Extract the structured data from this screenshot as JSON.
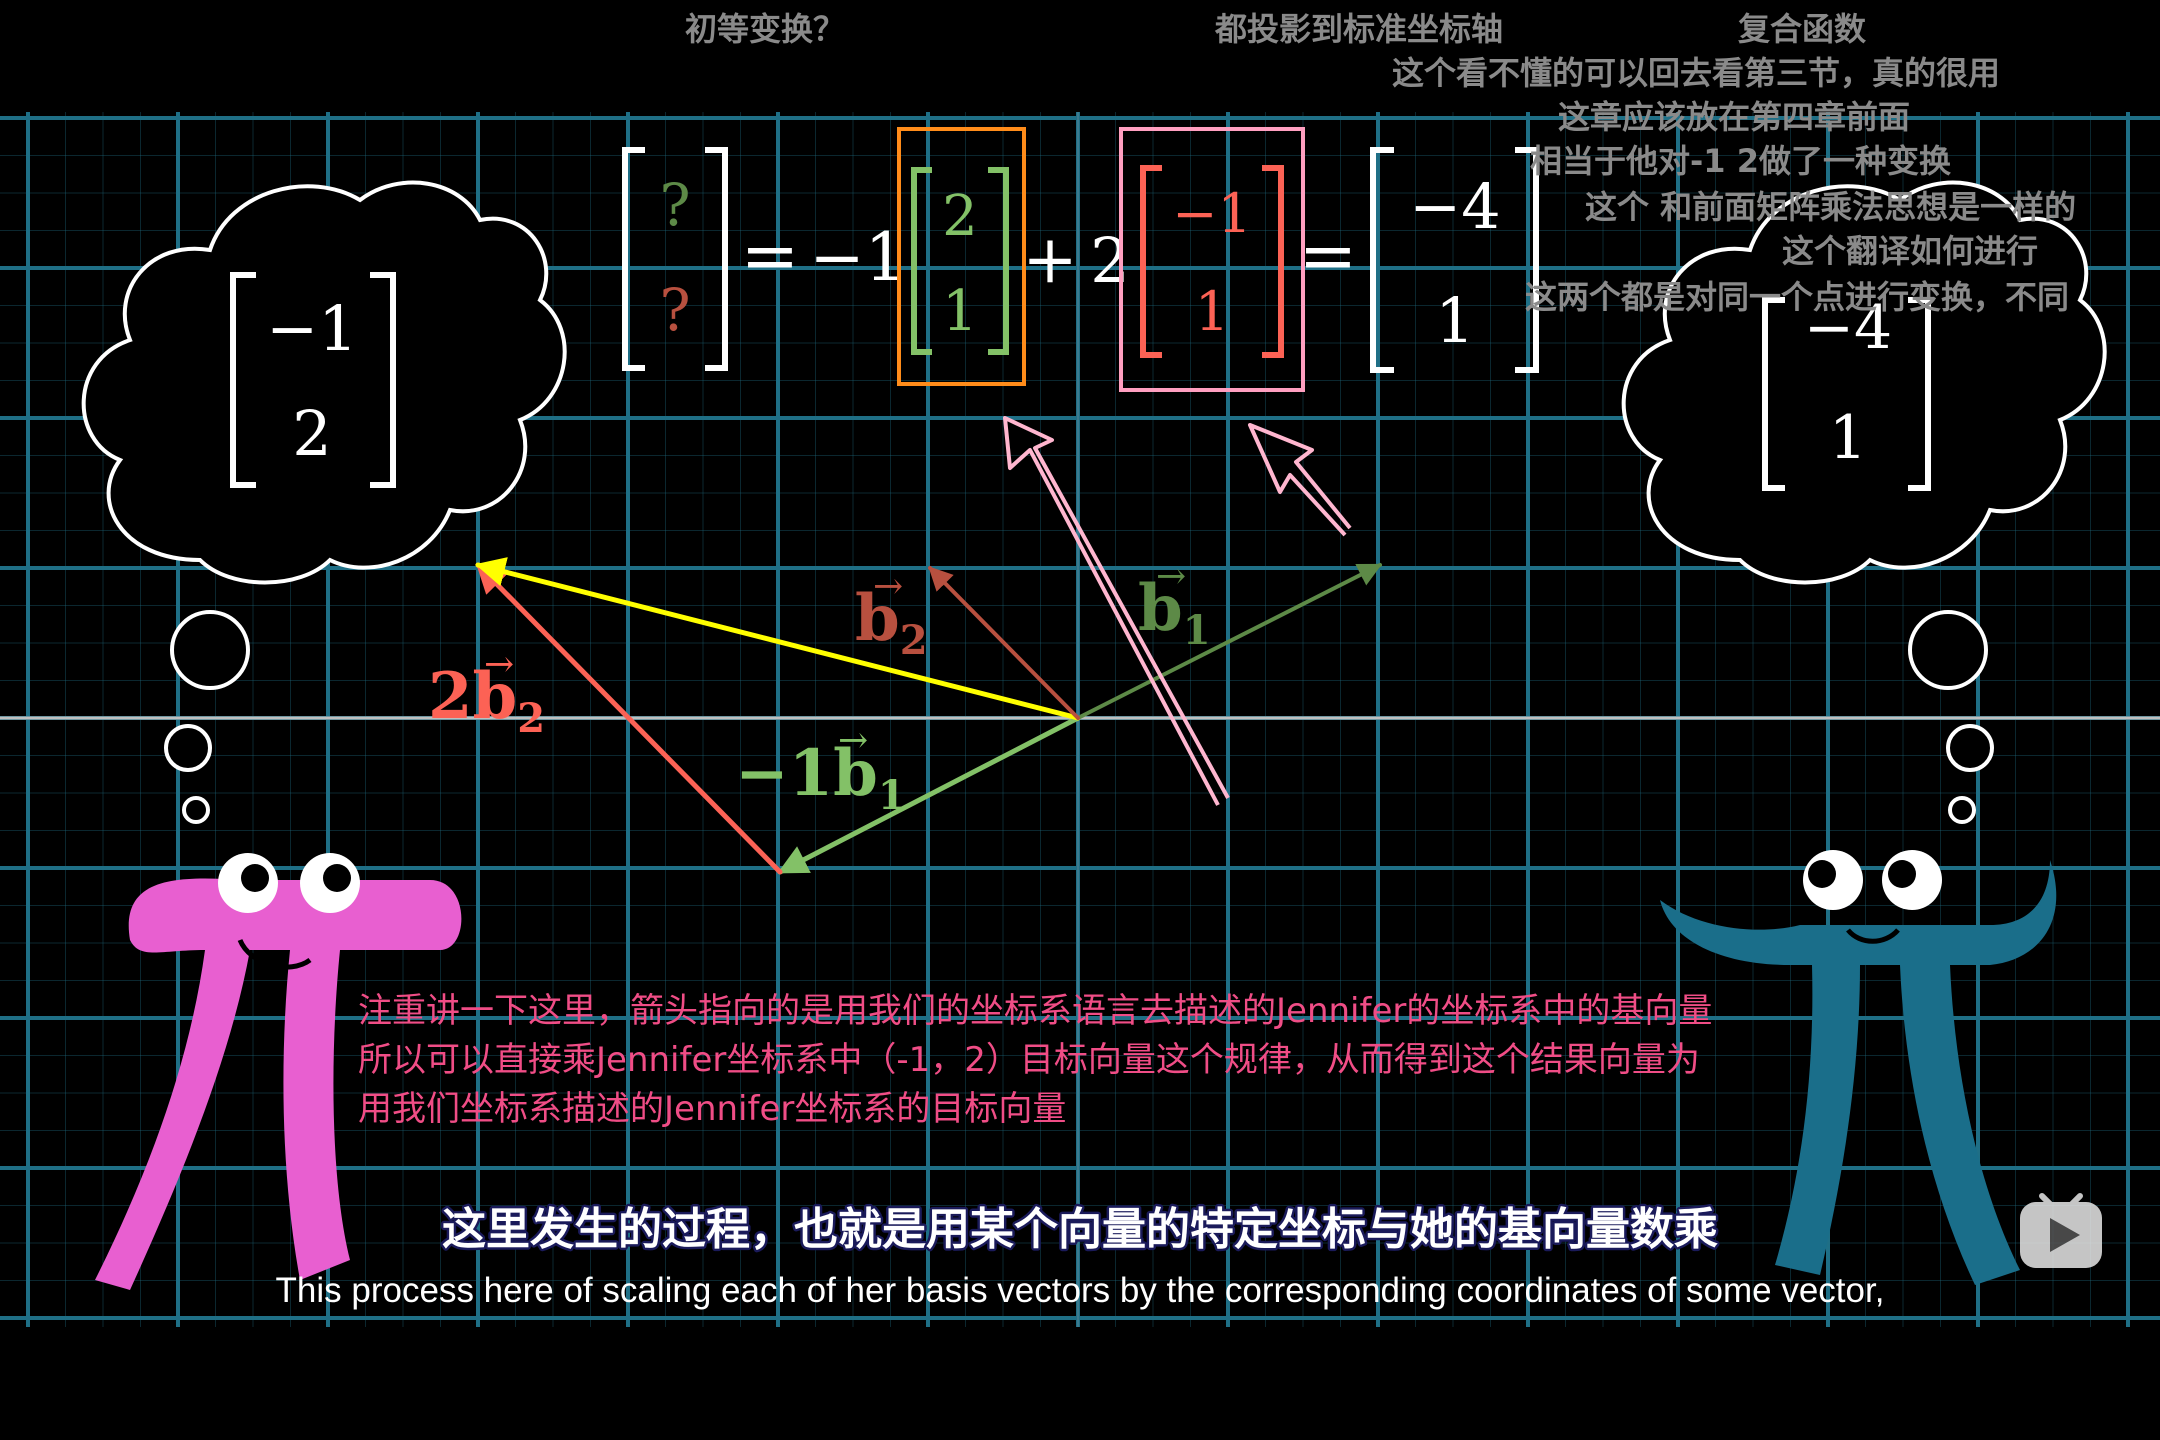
{
  "danmaku": [
    "初等变换？",
    "都投影到标准坐标轴",
    "复合函数",
    "这个看不懂的可以回去看第三节，真的很用",
    "这章应该放在第四章前面",
    "相当于他对-1  2做了一种变换",
    "这个  和前面矩阵乘法思想是一样的",
    "这个翻译如何进行",
    "这两个都是对同一个点进行变换，不同"
  ],
  "equation": {
    "lhs_top": "?",
    "lhs_bottom": "?",
    "equals": "=",
    "coef1": "−1",
    "b1_top": "2",
    "b1_bottom": "1",
    "plus": "+",
    "coef2": "2",
    "b2_top": "−1",
    "b2_bottom": "1",
    "equals2": "=",
    "res_top": "−4",
    "res_bottom": "1"
  },
  "thought_left": {
    "top": "−1",
    "bottom": "2"
  },
  "thought_right": {
    "top": "−4",
    "bottom": "1"
  },
  "vector_labels": {
    "b2": "b",
    "b2_sub": "2",
    "b1": "b",
    "b1_sub": "1",
    "two_b2_coef": "2",
    "two_b2": "b",
    "two_b2_sub": "2",
    "neg_b1_coef": "−1",
    "neg_b1": "b",
    "neg_b1_sub": "1"
  },
  "note_lines": [
    "注重讲一下这里，箭头指向的是用我们的坐标系语言去描述的Jennifer的坐标系中的基向量",
    "所以可以直接乘Jennifer坐标系中（-1，2）目标向量这个规律，从而得到这个结果向量为",
    "用我们坐标系描述的Jennifer坐标系的目标向量"
  ],
  "subtitle_zh": "这里发生的过程，也就是用某个向量的特定坐标与她的基向量数乘",
  "subtitle_en": "This process here of scaling each of her basis vectors by the corresponding coordinates of some vector,",
  "colors": {
    "grid": "#1f6f86",
    "axis": "#bfbfbf",
    "green": "#83c167",
    "red": "#fc6255",
    "yellow": "#ffff00",
    "orange_box": "#ff8c1a",
    "pink_box": "#ff9fc0",
    "pi_pink": "#e85fd0",
    "pi_blue": "#1a6e8a"
  },
  "icons": [
    "play-logo-icon"
  ]
}
